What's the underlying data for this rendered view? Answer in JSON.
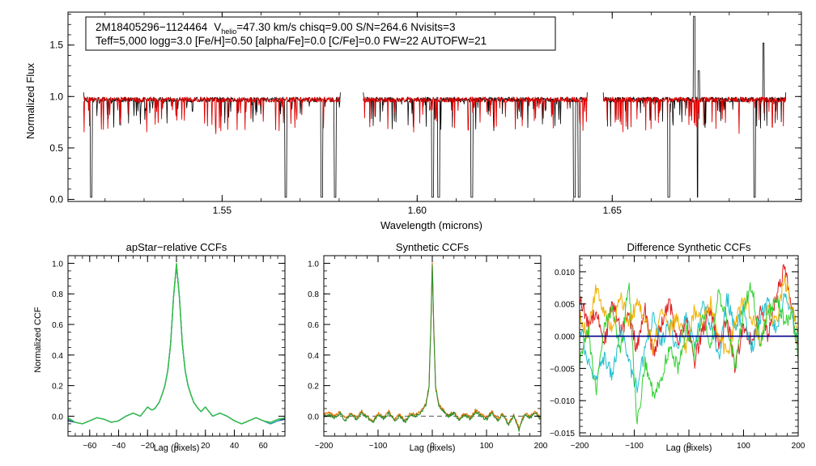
{
  "chart_data": [
    {
      "id": "spectrum",
      "type": "line",
      "ylabel": "Normalized Flux",
      "xlabel": "Wavelength (microns)",
      "xlim": [
        1.5105,
        1.6985
      ],
      "ylim": [
        -0.02,
        1.82
      ],
      "xticks": [
        1.55,
        1.6,
        1.65
      ],
      "xtick_labels": [
        "1.55",
        "1.60",
        "1.65"
      ],
      "yticks": [
        0.0,
        0.5,
        1.0,
        1.5
      ],
      "ytick_labels": [
        "0.0",
        "0.5",
        "1.0",
        "1.5"
      ],
      "annotation": {
        "line1_id": "2M18405296−1124464",
        "line1_vlabel": "V",
        "line1_vsub": "helio",
        "line1_rest": "=47.30 km/s  chisq=9.00  S/N=264.6  Nvisits=3",
        "line2": "Teff=5,000 logg=3.0 [Fe/H]=0.50 [alpha/Fe]=0.0 [C/Fe]=0.0 FW=22 AUTOFW=21"
      },
      "chips": [
        [
          1.5145,
          1.5803
        ],
        [
          1.5862,
          1.6436
        ],
        [
          1.6477,
          1.6945
        ]
      ],
      "continuum": 0.97,
      "deep_lines": [
        1.5135,
        1.5165,
        1.5663,
        1.5755,
        1.579,
        1.604,
        1.6055,
        1.614,
        1.6403,
        1.6415,
        1.6645,
        1.672,
        1.6865
      ],
      "emission_spikes": [
        [
          1.671,
          1.78
        ],
        [
          1.6888,
          1.52
        ],
        [
          1.6722,
          1.25
        ]
      ],
      "series": [
        {
          "name": "observed",
          "color": "#000000"
        },
        {
          "name": "model",
          "color": "#e00000"
        }
      ]
    },
    {
      "id": "apstar_ccf",
      "type": "line",
      "title": "apStar−relative CCFs",
      "ylabel": "Normalized CCF",
      "xlabel": "Lag (pixels)",
      "xlim": [
        -75,
        75
      ],
      "ylim": [
        -0.13,
        1.05
      ],
      "xticks": [
        -60,
        -40,
        -20,
        0,
        20,
        40,
        60
      ],
      "xtick_labels": [
        "−60",
        "−40",
        "−20",
        "0",
        "20",
        "40",
        "60"
      ],
      "yticks": [
        0.0,
        0.2,
        0.4,
        0.6,
        0.8,
        1.0
      ],
      "ytick_labels": [
        "0.0",
        "0.2",
        "0.4",
        "0.6",
        "0.8",
        "1.0"
      ],
      "x": [
        -75,
        -70,
        -65,
        -60,
        -55,
        -50,
        -45,
        -40,
        -35,
        -30,
        -25,
        -20,
        -17,
        -15,
        -12,
        -10,
        -8,
        -6,
        -4,
        -2,
        0,
        2,
        4,
        6,
        8,
        10,
        12,
        15,
        17,
        20,
        25,
        30,
        35,
        40,
        45,
        50,
        55,
        60,
        65,
        70,
        75
      ],
      "series": [
        {
          "name": "ccf-navy",
          "color": "#1a1a80",
          "values": [
            -0.03,
            -0.04,
            -0.05,
            -0.03,
            -0.01,
            -0.02,
            -0.04,
            -0.03,
            0.0,
            0.02,
            0.0,
            0.06,
            0.04,
            0.05,
            0.09,
            0.14,
            0.2,
            0.3,
            0.48,
            0.78,
            0.99,
            0.78,
            0.48,
            0.3,
            0.2,
            0.14,
            0.09,
            0.05,
            0.03,
            0.06,
            0.0,
            0.02,
            0.0,
            -0.03,
            -0.05,
            -0.03,
            -0.01,
            -0.03,
            -0.05,
            -0.03,
            -0.02
          ]
        },
        {
          "name": "ccf-teal",
          "color": "#20a0a0",
          "values": [
            -0.02,
            -0.04,
            -0.05,
            -0.03,
            -0.01,
            -0.02,
            -0.04,
            -0.03,
            0.0,
            0.02,
            0.0,
            0.06,
            0.04,
            0.05,
            0.09,
            0.14,
            0.2,
            0.3,
            0.48,
            0.78,
            0.99,
            0.78,
            0.48,
            0.3,
            0.2,
            0.14,
            0.09,
            0.05,
            0.03,
            0.06,
            0.0,
            0.02,
            0.0,
            -0.03,
            -0.05,
            -0.03,
            -0.01,
            -0.03,
            -0.05,
            -0.03,
            -0.01
          ]
        },
        {
          "name": "ccf-green",
          "color": "#30c040",
          "values": [
            -0.01,
            -0.04,
            -0.05,
            -0.03,
            -0.01,
            -0.02,
            -0.04,
            -0.03,
            0.0,
            0.02,
            0.0,
            0.06,
            0.04,
            0.05,
            0.09,
            0.14,
            0.2,
            0.3,
            0.48,
            0.78,
            1.0,
            0.78,
            0.48,
            0.3,
            0.2,
            0.14,
            0.09,
            0.05,
            0.03,
            0.06,
            0.0,
            0.02,
            0.0,
            -0.03,
            -0.05,
            -0.03,
            -0.01,
            -0.03,
            -0.04,
            -0.02,
            -0.01
          ]
        }
      ]
    },
    {
      "id": "synthetic_ccf",
      "type": "line",
      "title": "Synthetic CCFs",
      "xlabel": "Lag (pixels)",
      "xlim": [
        -200,
        200
      ],
      "ylim": [
        -0.13,
        1.05
      ],
      "xticks": [
        -200,
        -100,
        0,
        100,
        200
      ],
      "xtick_labels": [
        "−200",
        "−100",
        "0",
        "100",
        "200"
      ],
      "yticks": [
        0.0,
        0.2,
        0.4,
        0.6,
        0.8,
        1.0
      ],
      "ytick_labels": [
        "0.0",
        "0.2",
        "0.4",
        "0.6",
        "0.8",
        "1.0"
      ],
      "zero_line": 0.0,
      "x": [
        -200,
        -190,
        -180,
        -170,
        -160,
        -150,
        -140,
        -130,
        -120,
        -110,
        -100,
        -90,
        -80,
        -70,
        -60,
        -50,
        -40,
        -30,
        -20,
        -12,
        -6,
        -3,
        0,
        3,
        6,
        12,
        20,
        30,
        40,
        50,
        60,
        70,
        80,
        90,
        100,
        110,
        120,
        130,
        140,
        150,
        160,
        170,
        180,
        190,
        200
      ],
      "series": [
        {
          "name": "ccf-orange",
          "color": "#e07000",
          "values": [
            0.01,
            0.02,
            0.0,
            0.03,
            -0.02,
            0.02,
            -0.01,
            0.03,
            0.0,
            -0.03,
            0.02,
            -0.01,
            0.03,
            -0.02,
            0.01,
            -0.03,
            0.02,
            0.01,
            0.04,
            0.08,
            0.2,
            0.55,
            1.0,
            0.55,
            0.2,
            0.08,
            0.04,
            0.01,
            0.03,
            -0.02,
            0.02,
            -0.01,
            0.04,
            0.01,
            -0.01,
            0.03,
            -0.02,
            0.02,
            -0.05,
            0.01,
            -0.08,
            0.02,
            0.0,
            0.03,
            -0.01
          ]
        },
        {
          "name": "ccf-green",
          "color": "#2f8f2f",
          "values": [
            0.0,
            0.01,
            -0.01,
            0.02,
            -0.03,
            0.01,
            -0.02,
            0.02,
            -0.01,
            -0.04,
            0.01,
            -0.02,
            0.02,
            -0.03,
            0.0,
            -0.04,
            0.01,
            0.0,
            0.03,
            0.07,
            0.19,
            0.54,
            0.99,
            0.54,
            0.19,
            0.07,
            0.03,
            0.0,
            0.02,
            -0.03,
            0.01,
            -0.02,
            0.03,
            0.0,
            -0.02,
            0.02,
            -0.03,
            0.01,
            -0.06,
            0.0,
            -0.09,
            0.01,
            -0.01,
            0.02,
            -0.02
          ]
        }
      ]
    },
    {
      "id": "difference_ccf",
      "type": "line",
      "title": "Difference Synthetic CCFs",
      "xlabel": "Lag (pixels)",
      "xlim": [
        -200,
        200
      ],
      "ylim": [
        -0.0155,
        0.0125
      ],
      "xticks": [
        -200,
        -100,
        0,
        100,
        200
      ],
      "xtick_labels": [
        "−200",
        "−100",
        "0",
        "100",
        "200"
      ],
      "yticks": [
        -0.015,
        -0.01,
        -0.005,
        0.0,
        0.005,
        0.01
      ],
      "ytick_labels": [
        "−0.015",
        "−0.010",
        "−0.005",
        "0.000",
        "0.005",
        "0.010"
      ],
      "x": [
        -200,
        -185,
        -170,
        -155,
        -140,
        -125,
        -110,
        -95,
        -80,
        -65,
        -50,
        -35,
        -20,
        -5,
        10,
        25,
        40,
        55,
        70,
        85,
        100,
        115,
        130,
        145,
        160,
        175,
        190,
        200
      ],
      "series": [
        {
          "name": "diff-navy",
          "color": "#00008b",
          "values": [
            0.0,
            0.0,
            0.0,
            0.0,
            0.0,
            0.0,
            0.0,
            0.0,
            0.0,
            0.0,
            0.0,
            0.0,
            0.0,
            0.0,
            0.0,
            0.0,
            0.0,
            0.0,
            0.0,
            0.0,
            0.0,
            0.0,
            0.0,
            0.0,
            0.0,
            0.0,
            0.0,
            0.0
          ]
        },
        {
          "name": "diff-red",
          "color": "#e02020",
          "values": [
            0.006,
            0.002,
            0.004,
            -0.001,
            0.005,
            0.001,
            0.003,
            -0.002,
            0.004,
            -0.003,
            0.002,
            0.005,
            -0.001,
            0.003,
            -0.004,
            0.001,
            0.004,
            -0.002,
            0.003,
            -0.005,
            0.002,
            -0.001,
            0.004,
            0.0,
            0.006,
            0.011,
            0.003,
            -0.002
          ]
        },
        {
          "name": "diff-cyan",
          "color": "#20c0d0",
          "values": [
            0.002,
            -0.004,
            -0.007,
            -0.003,
            -0.006,
            0.001,
            -0.004,
            -0.008,
            -0.002,
            0.003,
            -0.001,
            0.002,
            -0.003,
            0.004,
            -0.002,
            0.005,
            0.002,
            -0.003,
            0.006,
            0.001,
            0.004,
            -0.002,
            0.003,
            0.005,
            0.001,
            0.007,
            0.002,
            0.0
          ]
        },
        {
          "name": "diff-orange",
          "color": "#f0b000",
          "values": [
            0.003,
            0.0,
            0.008,
            0.004,
            0.001,
            0.006,
            0.002,
            0.005,
            0.003,
            -0.002,
            0.004,
            0.001,
            0.003,
            -0.002,
            0.004,
            0.002,
            0.005,
            0.0,
            -0.003,
            0.002,
            0.006,
            0.003,
            -0.001,
            0.004,
            0.002,
            0.009,
            0.004,
            0.001
          ]
        },
        {
          "name": "diff-green",
          "color": "#30d030",
          "values": [
            -0.004,
            0.001,
            -0.009,
            0.002,
            0.004,
            -0.003,
            0.009,
            -0.014,
            -0.004,
            -0.009,
            -0.006,
            -0.002,
            -0.005,
            0.001,
            -0.003,
            0.004,
            -0.002,
            0.007,
            0.002,
            -0.005,
            0.004,
            0.008,
            -0.001,
            0.003,
            0.006,
            0.002,
            0.004,
            -0.003
          ]
        }
      ]
    }
  ]
}
